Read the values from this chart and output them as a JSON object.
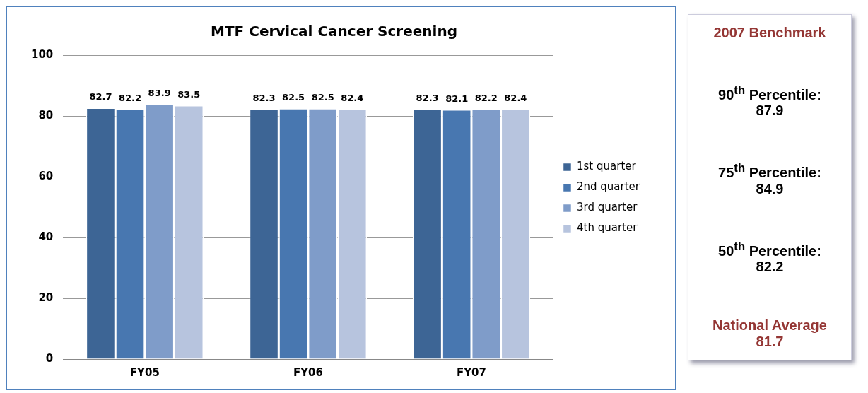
{
  "chart_data": {
    "type": "bar",
    "title": "MTF Cervical Cancer Screening",
    "categories": [
      "FY05",
      "FY06",
      "FY07"
    ],
    "series": [
      {
        "name": "1st quarter",
        "color": "#3d6595",
        "values": [
          82.7,
          82.3,
          82.3
        ]
      },
      {
        "name": "2nd quarter",
        "color": "#4877b0",
        "values": [
          82.2,
          82.5,
          82.1
        ]
      },
      {
        "name": "3rd quarter",
        "color": "#7f9cc9",
        "values": [
          83.9,
          82.5,
          82.2
        ]
      },
      {
        "name": "4th quarter",
        "color": "#b7c4de",
        "values": [
          83.5,
          82.4,
          82.4
        ]
      }
    ],
    "ylim": [
      0,
      100
    ],
    "yticks": [
      0,
      20,
      40,
      60,
      80,
      100
    ],
    "grid": "y",
    "legend": "right",
    "data_labels": true,
    "annotations": [
      "2007 Benchmark",
      "90$^{th}$ Percentile: 87.9",
      "75$^{th}$ Percentile: 84.9",
      "50$^{th}$ Percentile: 82.2",
      "National Average 81.7"
    ]
  }
}
